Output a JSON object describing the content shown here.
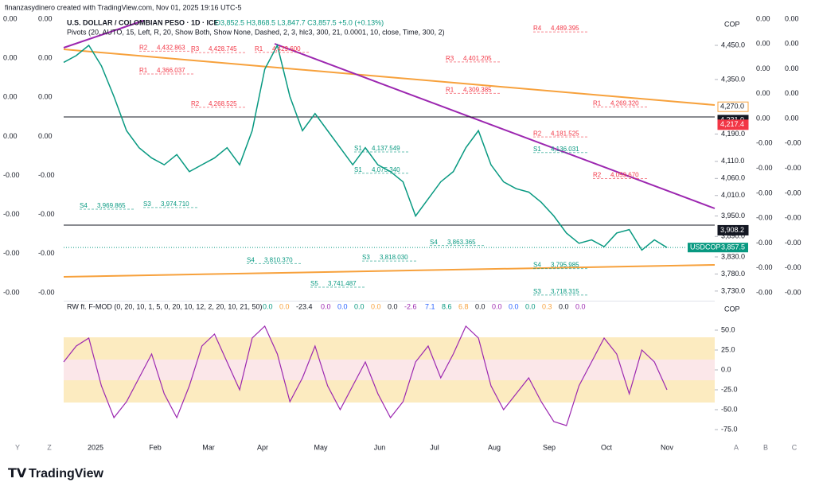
{
  "header": "finanzasydinero created with TradingView.com, Nov 01, 2025 19:16 UTC-5",
  "chart": {
    "symbol": "U.S. DOLLAR / COLOMBIAN PESO · 1D · ICE",
    "ohlc": "O3,852.5 H3,868.5 L3,847.7 C3,857.5 +5.0 (+0.13%)",
    "pivots_title": "Pivots (20, AUTO, 15, Left, R, 20, Show Both, Show None, Dashed, 2, 3, hlc3, 300, 21, 0.0001, 10, close, Time, 300, 2)",
    "currency": "COP",
    "price_ticks": [
      {
        "value": 4450,
        "label": "4,450.0"
      },
      {
        "value": 4350,
        "label": "4,350.0"
      },
      {
        "value": 4190,
        "label": "4,190.0"
      },
      {
        "value": 4110,
        "label": "4,110.0"
      },
      {
        "value": 4060,
        "label": "4,060.0"
      },
      {
        "value": 4010,
        "label": "4,010.0"
      },
      {
        "value": 3950,
        "label": "3,950.0"
      },
      {
        "value": 3890,
        "label": "3,890.0"
      },
      {
        "value": 3830,
        "label": "3,830.0"
      },
      {
        "value": 3780,
        "label": "3,780.0"
      },
      {
        "value": 3730,
        "label": "3,730.0"
      }
    ],
    "price_tags": [
      {
        "value": 4270,
        "label": "4,270.0",
        "color": "#ffffff"
      },
      {
        "value": 4231,
        "label": "4,231.0",
        "color": "#131722"
      },
      {
        "value": 4217.4,
        "label": "4,217.4",
        "color": "#f23645"
      },
      {
        "value": 3908.2,
        "label": "3,908.2",
        "color": "#131722"
      }
    ],
    "symbol_tag": {
      "ticker": "USDCOP",
      "value": 3857.5,
      "label": "3,857.5"
    },
    "closes": [
      4400,
      4420,
      4450,
      4390,
      4300,
      4200,
      4150,
      4120,
      4100,
      4130,
      4080,
      4100,
      4120,
      4150,
      4100,
      4200,
      4380,
      4450,
      4300,
      4200,
      4250,
      4200,
      4150,
      4100,
      4150,
      4100,
      4080,
      4050,
      3950,
      4000,
      4050,
      4080,
      4150,
      4200,
      4100,
      4050,
      4030,
      4020,
      3990,
      3950,
      3900,
      3870,
      3880,
      3860,
      3900,
      3910,
      3850,
      3880,
      3857.5
    ],
    "pivots": [
      {
        "level": "R1",
        "value": 4366.037,
        "label": "4,366.037"
      },
      {
        "level": "R3",
        "value": 4428.745,
        "label": "4,428.745"
      },
      {
        "level": "R2",
        "value": 4432.863,
        "label": "4,432.863"
      },
      {
        "level": "S1",
        "value": 4137.549,
        "label": "4,137.549"
      },
      {
        "level": "R1",
        "value": 4429.6,
        "label": "4,429.600"
      },
      {
        "level": "R2",
        "value": 4268.525,
        "label": "4,268.525"
      },
      {
        "level": "S1",
        "value": 4075.34,
        "label": "4,075.340"
      },
      {
        "level": "R3",
        "value": 4401.205,
        "label": "4,401.205"
      },
      {
        "level": "R1",
        "value": 4309.385,
        "label": "4,309.385"
      },
      {
        "level": "R2",
        "value": 4181.525,
        "label": "4,181.525"
      },
      {
        "level": "S1",
        "value": 4136.031,
        "label": "4,136.031"
      },
      {
        "level": "R4",
        "value": 4489.395,
        "label": "4,489.395"
      },
      {
        "level": "R1",
        "value": 4269.32,
        "label": "4,269.320"
      },
      {
        "level": "S4",
        "value": 3969.865,
        "label": "3,969.865"
      },
      {
        "level": "S3",
        "value": 3974.71,
        "label": "3,974.710"
      },
      {
        "level": "S4",
        "value": 3810.37,
        "label": "3,810.370"
      },
      {
        "level": "S3",
        "value": 3818.03,
        "label": "3,818.030"
      },
      {
        "level": "S4",
        "value": 3863.365,
        "label": "3,863.365"
      },
      {
        "level": "S4",
        "value": 3795.985,
        "label": "3,795.985"
      },
      {
        "level": "S5",
        "value": 3741.487,
        "label": "3,741.487"
      },
      {
        "level": "R2",
        "value": 4059.67,
        "label": "4,059.670"
      },
      {
        "level": "S3",
        "value": 3718.315,
        "label": "3,718.315"
      }
    ]
  },
  "indicator": {
    "title": "RW ft. F-MOD (0, 20, 10, 1, 5, 0, 20, 10, 12, 2, 20, 10, 21, 50)",
    "readouts": [
      "0.0",
      "0.0",
      "-23.4",
      "0.0",
      "0.0",
      "0.0",
      "0.0",
      "0.0",
      "-2.6",
      "7.1",
      "8.6",
      "6.8",
      "0.0",
      "0.0",
      "0.0",
      "0.0",
      "0.3",
      "0.0",
      "0.0"
    ],
    "currency": "COP",
    "ticks": [
      {
        "value": 50,
        "label": "50.0"
      },
      {
        "value": 25,
        "label": "25.0"
      },
      {
        "value": 0,
        "label": "0.0"
      },
      {
        "value": -25,
        "label": "-25.0"
      },
      {
        "value": -50,
        "label": "-50.0"
      },
      {
        "value": -75,
        "label": "-75.0"
      }
    ],
    "values": [
      10,
      30,
      40,
      -20,
      -60,
      -40,
      -10,
      20,
      -30,
      -60,
      -20,
      30,
      45,
      10,
      -25,
      40,
      55,
      20,
      -40,
      -10,
      30,
      -20,
      -50,
      -20,
      10,
      -30,
      -60,
      -40,
      10,
      30,
      -10,
      20,
      55,
      40,
      -20,
      -50,
      -30,
      -10,
      -40,
      -65,
      -70,
      -20,
      10,
      40,
      20,
      -30,
      25,
      10,
      -25
    ],
    "readout_colors": [
      "#089981",
      "#f7a13c",
      "#131722",
      "#9c27b0",
      "#2962ff"
    ]
  },
  "time_axis": [
    "2025",
    "Feb",
    "Mar",
    "Apr",
    "May",
    "Jun",
    "Jul",
    "Aug",
    "Sep",
    "Oct",
    "Nov"
  ],
  "corner_letters": [
    "Y",
    "Z",
    "A",
    "B",
    "C"
  ],
  "side_scales": {
    "left_a": [
      "0.00",
      "0.00",
      "0.00",
      "0.00",
      "-0.00",
      "-0.00",
      "-0.00",
      "-0.00"
    ],
    "left_b": [
      "0.00",
      "0.00",
      "0.00",
      "0.00",
      "-0.00",
      "-0.00",
      "-0.00",
      "-0.00"
    ],
    "right_a": [
      "0.00",
      "0.00",
      "0.00",
      "0.00",
      "0.00",
      "-0.00",
      "-0.00",
      "-0.00",
      "-0.00",
      "-0.00",
      "-0.00",
      "-0.00"
    ],
    "right_b": [
      "0.00",
      "0.00",
      "0.00",
      "0.00",
      "0.00",
      "-0.00",
      "-0.00",
      "-0.00",
      "-0.00",
      "-0.00",
      "-0.00",
      "-0.00"
    ]
  },
  "footer": "TradingView"
}
